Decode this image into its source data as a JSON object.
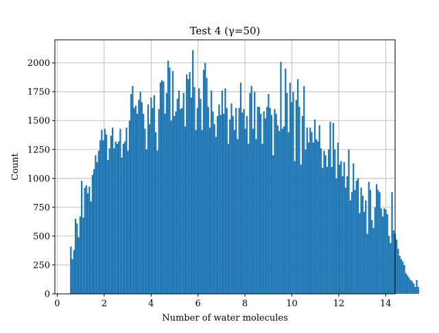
{
  "chart_data": {
    "type": "bar",
    "title": "Test 4 (γ=50)",
    "xlabel": "Number of water molecules",
    "ylabel": "Count",
    "xlim": [
      -0.1,
      14.4
    ],
    "ylim": [
      0,
      2200
    ],
    "xticks": [
      0,
      2,
      4,
      6,
      8,
      10,
      12,
      14
    ],
    "yticks": [
      0,
      250,
      500,
      750,
      1000,
      1250,
      1500,
      1750,
      2000
    ],
    "grid": true,
    "bar_color": "#1f77b4",
    "bin_start": 0.55,
    "bin_width": 0.0658,
    "values": [
      410,
      300,
      380,
      650,
      610,
      490,
      670,
      980,
      660,
      920,
      940,
      870,
      930,
      800,
      1030,
      1080,
      1200,
      1140,
      1240,
      1330,
      1420,
      1330,
      1430,
      1380,
      1160,
      1260,
      1370,
      1440,
      1260,
      1320,
      1300,
      1320,
      1430,
      1180,
      1300,
      1320,
      1440,
      1240,
      1500,
      1730,
      1800,
      1610,
      1630,
      1560,
      1680,
      1750,
      1660,
      1560,
      1430,
      1250,
      1640,
      1470,
      1700,
      1610,
      1720,
      1400,
      1240,
      1600,
      1830,
      1850,
      1840,
      1560,
      1740,
      2020,
      1960,
      1500,
      1930,
      1540,
      1580,
      1690,
      1760,
      1600,
      1610,
      1740,
      1450,
      1900,
      1860,
      1920,
      1700,
      2110,
      1790,
      1420,
      1610,
      1780,
      1690,
      1420,
      1940,
      2000,
      1870,
      1620,
      1440,
      1760,
      1580,
      1470,
      1360,
      1540,
      1640,
      1550,
      1760,
      1560,
      1780,
      1610,
      1300,
      1510,
      1650,
      1540,
      1420,
      1610,
      1340,
      1610,
      1830,
      1570,
      1600,
      1430,
      1540,
      1300,
      1740,
      1800,
      1430,
      1750,
      1340,
      1620,
      1620,
      1560,
      1300,
      1580,
      1520,
      1620,
      1730,
      1610,
      1550,
      1200,
      1600,
      1560,
      1460,
      1410,
      2010,
      1430,
      1450,
      1950,
      1740,
      1400,
      1830,
      1660,
      1750,
      1150,
      1680,
      1860,
      1620,
      1120,
      1540,
      1800,
      1250,
      1440,
      1310,
      1440,
      1400,
      1310,
      1510,
      1340,
      1320,
      1460,
      1260,
      1090,
      1240,
      1200,
      1100,
      1250,
      1490,
      1100,
      1480,
      1250,
      1000,
      1310,
      1120,
      1150,
      1020,
      1140,
      920,
      1020,
      1250,
      810,
      880,
      1130,
      900,
      980,
      1000,
      700,
      920,
      850,
      710,
      810,
      520,
      970,
      900,
      640,
      570,
      750,
      950,
      900,
      880,
      740,
      670,
      740,
      730,
      690,
      500,
      440,
      880,
      550,
      520,
      470,
      390,
      330,
      300,
      280,
      250,
      180,
      160,
      140,
      120,
      110,
      90,
      60,
      120,
      60
    ]
  }
}
